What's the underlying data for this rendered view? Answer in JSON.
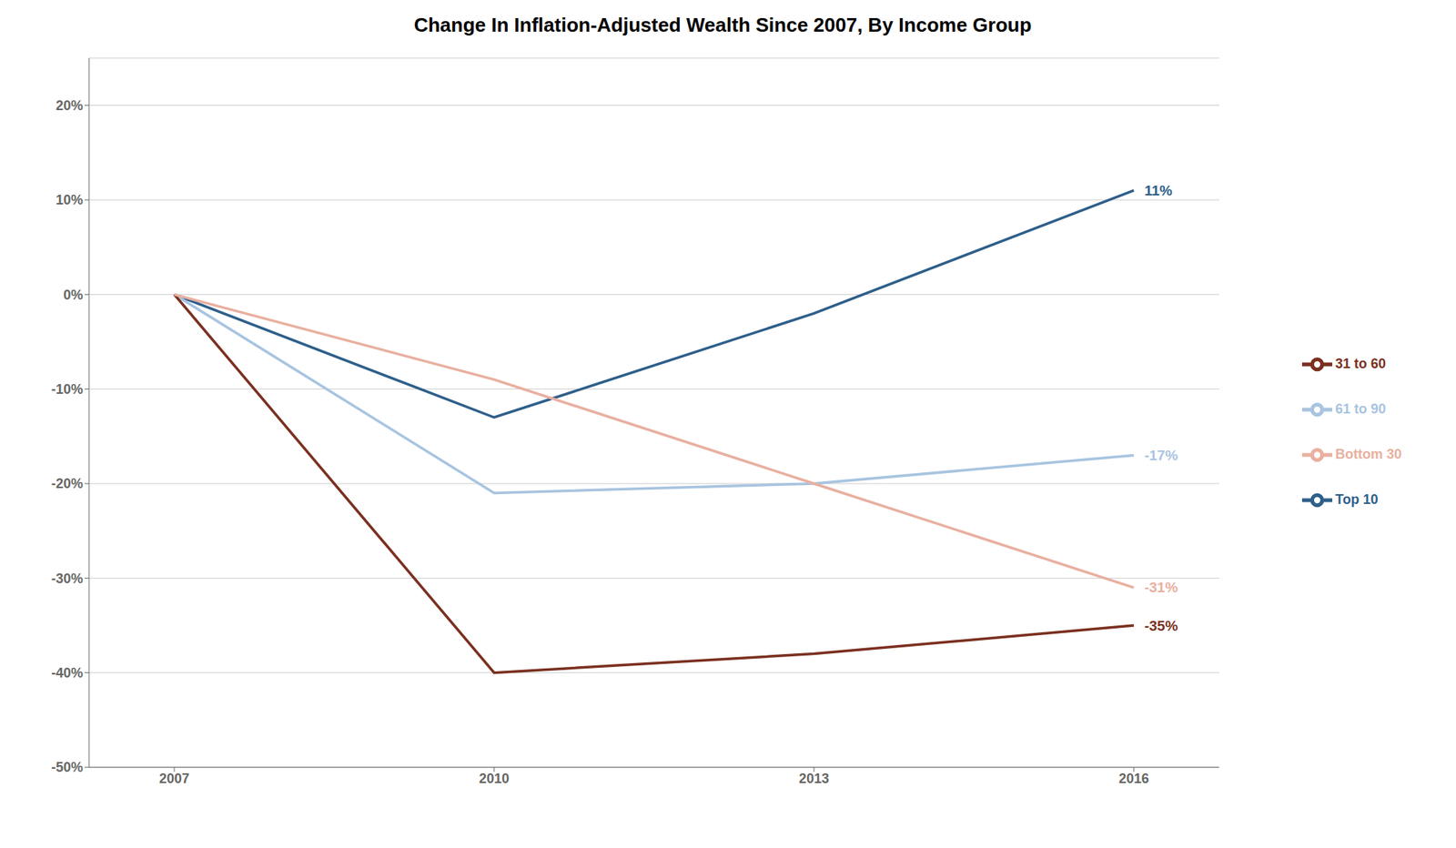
{
  "chart_data": {
    "type": "line",
    "title": "Change In Inflation-Adjusted Wealth Since 2007, By Income Group",
    "x": [
      2007,
      2010,
      2013,
      2016
    ],
    "series": [
      {
        "name": "Top 10",
        "color": "#2E5F8A",
        "values": [
          0,
          -13,
          -2,
          11
        ],
        "value_labels": [
          null,
          null,
          null,
          "11%"
        ]
      },
      {
        "name": "61 to 90",
        "color": "#A8C4E0",
        "values": [
          0,
          -21,
          -20,
          -17
        ],
        "value_labels": [
          null,
          null,
          null,
          "-17%"
        ]
      },
      {
        "name": "31 to 60",
        "color": "#7B3020",
        "values": [
          0,
          -40,
          -38,
          -35
        ],
        "value_labels": [
          null,
          null,
          null,
          "-35%"
        ]
      },
      {
        "name": "Bottom 30",
        "color": "#E8B0A0",
        "values": [
          0,
          -9,
          -20,
          -31
        ],
        "value_labels": [
          null,
          null,
          null,
          "-31%"
        ]
      }
    ],
    "xlim": [
      2006.2,
      2016.8
    ],
    "xticks": [
      2007,
      2010,
      2013,
      2016
    ],
    "ylim": [
      -50,
      25
    ],
    "yticks": [
      {
        "value": -50,
        "label": "-50%"
      },
      {
        "value": -40,
        "label": "-40%"
      },
      {
        "value": -30,
        "label": "-30%"
      },
      {
        "value": -20,
        "label": "-20%"
      },
      {
        "value": -10,
        "label": "-10%"
      },
      {
        "value": 0,
        "label": "0%"
      },
      {
        "value": 10,
        "label": "10%"
      },
      {
        "value": 20,
        "label": "20%"
      }
    ],
    "grid": true,
    "legend": "right",
    "data_labels": true
  }
}
